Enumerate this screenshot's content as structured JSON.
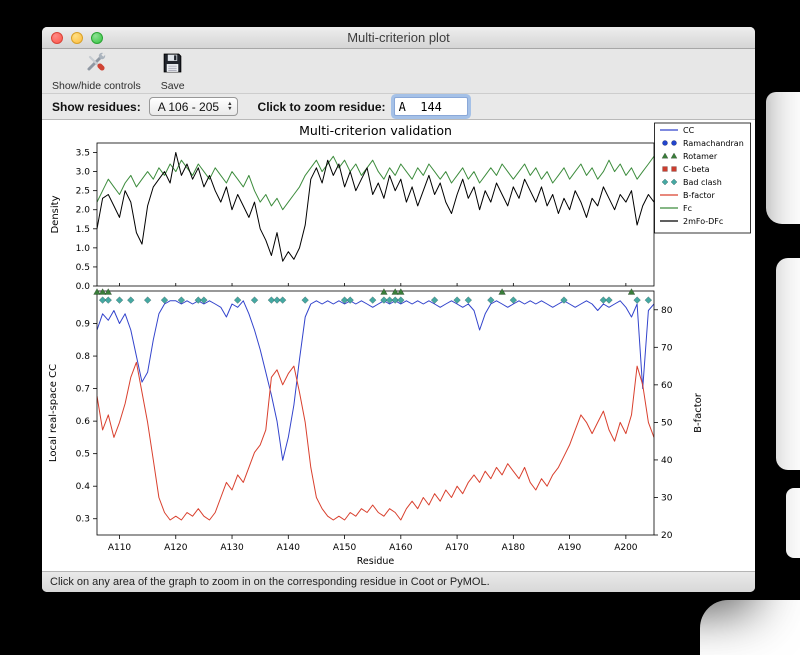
{
  "window": {
    "title": "Multi-criterion plot",
    "toolbar": {
      "show_hide_label": "Show/hide controls",
      "save_label": "Save"
    },
    "controls": {
      "show_residues_label": "Show residues:",
      "show_residues_value": "A 106 - 205",
      "zoom_residue_label": "Click to zoom residue:",
      "zoom_residue_value": "A  144"
    },
    "status_text": "Click on any area of the graph to zoom in on the corresponding residue in Coot or PyMOL."
  },
  "chart_data": {
    "type": "line",
    "title": "Multi-criterion validation",
    "xlabel": "Residue",
    "x_start": 106,
    "x_end": 205,
    "x_tick_values": [
      110,
      120,
      130,
      140,
      150,
      160,
      170,
      180,
      190,
      200
    ],
    "x_tick_labels": [
      "A110",
      "A120",
      "A130",
      "A140",
      "A150",
      "A160",
      "A170",
      "A180",
      "A190",
      "A200"
    ],
    "top_plot": {
      "ylabel": "Density",
      "ylim": [
        0.0,
        3.75
      ],
      "ytick_values": [
        0.0,
        0.5,
        1.0,
        1.5,
        2.0,
        2.5,
        3.0,
        3.5
      ],
      "ytick_labels": [
        "0.0",
        "0.5",
        "1.0",
        "1.5",
        "2.0",
        "2.5",
        "3.0",
        "3.5"
      ],
      "series": [
        {
          "name": "Fc",
          "color": "#3d8c3d",
          "values": [
            2.2,
            2.5,
            2.8,
            2.6,
            2.4,
            2.7,
            2.9,
            2.6,
            2.8,
            3.0,
            2.8,
            3.1,
            2.9,
            3.2,
            3.0,
            3.3,
            3.1,
            2.9,
            3.2,
            3.0,
            2.8,
            3.1,
            2.9,
            2.7,
            3.0,
            2.8,
            2.6,
            2.9,
            2.5,
            2.2,
            2.4,
            2.1,
            2.3,
            2.0,
            2.2,
            2.4,
            2.6,
            2.9,
            3.1,
            3.3,
            3.0,
            3.2,
            3.4,
            3.1,
            3.3,
            3.0,
            3.2,
            2.9,
            3.1,
            3.3,
            3.0,
            2.8,
            3.1,
            2.9,
            3.2,
            3.0,
            2.8,
            3.1,
            2.9,
            3.2,
            3.0,
            2.8,
            3.0,
            2.7,
            2.9,
            3.1,
            2.8,
            3.0,
            2.7,
            2.9,
            3.1,
            2.9,
            3.2,
            3.0,
            2.8,
            3.0,
            3.2,
            2.9,
            3.1,
            2.8,
            3.0,
            2.7,
            2.9,
            3.1,
            2.8,
            3.0,
            3.2,
            2.9,
            3.1,
            2.8,
            3.0,
            3.3,
            3.0,
            3.2,
            2.9,
            3.1,
            2.8,
            3.0,
            3.2,
            3.4
          ]
        },
        {
          "name": "2mFo-DFc",
          "color": "#000000",
          "values": [
            1.5,
            2.3,
            2.4,
            2.1,
            1.8,
            2.5,
            2.2,
            1.4,
            1.1,
            2.1,
            2.6,
            2.8,
            3.0,
            2.7,
            3.5,
            2.9,
            3.2,
            2.8,
            3.1,
            2.6,
            2.9,
            2.5,
            2.2,
            2.6,
            2.0,
            2.4,
            2.1,
            1.8,
            2.2,
            1.5,
            1.2,
            0.8,
            1.4,
            0.65,
            0.9,
            0.7,
            1.0,
            1.6,
            2.8,
            3.1,
            2.7,
            3.3,
            2.9,
            3.2,
            2.6,
            3.0,
            2.5,
            2.8,
            3.1,
            2.4,
            2.7,
            2.3,
            2.9,
            2.5,
            2.8,
            2.2,
            2.6,
            2.1,
            2.5,
            2.9,
            2.4,
            2.7,
            2.2,
            1.9,
            2.4,
            2.8,
            2.3,
            2.6,
            2.0,
            2.5,
            2.2,
            2.7,
            2.4,
            2.1,
            2.6,
            2.3,
            2.8,
            2.5,
            2.2,
            2.6,
            2.1,
            2.4,
            1.9,
            2.3,
            2.0,
            2.5,
            2.2,
            1.8,
            2.3,
            2.1,
            2.6,
            2.3,
            2.0,
            2.4,
            2.2,
            2.5,
            1.6,
            2.1,
            2.4,
            2.2
          ]
        }
      ]
    },
    "bottom_plot": {
      "left_ylabel": "Local real-space CC",
      "left_label_color": "#3344cc",
      "left_ylim": [
        0.25,
        1.0
      ],
      "left_ytick_values": [
        0.3,
        0.4,
        0.5,
        0.6,
        0.7,
        0.8,
        0.9
      ],
      "left_ytick_labels": [
        "0.3",
        "0.4",
        "0.5",
        "0.6",
        "0.7",
        "0.8",
        "0.9"
      ],
      "right_ylabel": "B-factor",
      "right_label_color": "#d9402e",
      "right_ylim": [
        20,
        85
      ],
      "right_ytick_values": [
        20,
        30,
        40,
        50,
        60,
        70,
        80
      ],
      "right_ytick_labels": [
        "20",
        "30",
        "40",
        "50",
        "60",
        "70",
        "80"
      ],
      "series": [
        {
          "name": "CC",
          "axis": "left",
          "color": "#3344cc",
          "values": [
            0.88,
            0.93,
            0.91,
            0.94,
            0.9,
            0.93,
            0.88,
            0.8,
            0.72,
            0.75,
            0.85,
            0.93,
            0.96,
            0.97,
            0.97,
            0.96,
            0.97,
            0.96,
            0.97,
            0.96,
            0.97,
            0.96,
            0.95,
            0.92,
            0.96,
            0.95,
            0.97,
            0.93,
            0.88,
            0.82,
            0.75,
            0.68,
            0.6,
            0.48,
            0.55,
            0.65,
            0.79,
            0.92,
            0.96,
            0.97,
            0.96,
            0.97,
            0.96,
            0.97,
            0.96,
            0.97,
            0.96,
            0.97,
            0.96,
            0.95,
            0.96,
            0.97,
            0.96,
            0.97,
            0.96,
            0.97,
            0.96,
            0.97,
            0.96,
            0.97,
            0.96,
            0.95,
            0.96,
            0.97,
            0.96,
            0.95,
            0.96,
            0.94,
            0.88,
            0.93,
            0.96,
            0.97,
            0.96,
            0.95,
            0.96,
            0.97,
            0.96,
            0.97,
            0.96,
            0.97,
            0.96,
            0.95,
            0.96,
            0.97,
            0.96,
            0.95,
            0.96,
            0.97,
            0.96,
            0.94,
            0.96,
            0.95,
            0.96,
            0.97,
            0.95,
            0.92,
            0.96,
            0.7,
            0.94,
            0.96
          ]
        },
        {
          "name": "B-factor",
          "axis": "right",
          "color": "#d9402e",
          "values": [
            57,
            48,
            52,
            46,
            50,
            55,
            62,
            66,
            58,
            50,
            40,
            30,
            26,
            24,
            25,
            24,
            26,
            25,
            27,
            25,
            24,
            26,
            30,
            34,
            32,
            36,
            34,
            38,
            42,
            44,
            48,
            62,
            64,
            60,
            63,
            65,
            58,
            50,
            38,
            30,
            27,
            25,
            24,
            25,
            24,
            26,
            25,
            27,
            26,
            28,
            26,
            25,
            27,
            26,
            24,
            27,
            29,
            27,
            30,
            28,
            31,
            29,
            32,
            30,
            33,
            31,
            34,
            36,
            34,
            37,
            35,
            38,
            36,
            39,
            37,
            35,
            38,
            34,
            32,
            35,
            33,
            36,
            38,
            41,
            44,
            48,
            52,
            50,
            47,
            50,
            53,
            48,
            45,
            50,
            47,
            52,
            65,
            60,
            50,
            46
          ]
        }
      ],
      "markers": [
        {
          "name": "Rotamer",
          "shape": "triangle",
          "color": "#3a7d3a",
          "y_value": 0.997,
          "residues": [
            106,
            107,
            108,
            157,
            159,
            160,
            178,
            201
          ]
        },
        {
          "name": "Bad clash",
          "shape": "diamond",
          "color": "#45a8a2",
          "y_value": 0.972,
          "residues": [
            107,
            108,
            110,
            112,
            115,
            118,
            121,
            124,
            125,
            131,
            134,
            137,
            138,
            139,
            143,
            150,
            151,
            155,
            157,
            158,
            159,
            160,
            166,
            170,
            172,
            176,
            180,
            189,
            196,
            197,
            202,
            204
          ]
        }
      ]
    },
    "legend": [
      {
        "label": "CC",
        "type": "line",
        "color": "#3344cc"
      },
      {
        "label": "Ramachandran",
        "type": "circle",
        "color": "#2244cc"
      },
      {
        "label": "Rotamer",
        "type": "triangle",
        "color": "#3a7d3a"
      },
      {
        "label": "C-beta",
        "type": "square",
        "color": "#cc3d2e"
      },
      {
        "label": "Bad clash",
        "type": "diamond",
        "color": "#45a8a2"
      },
      {
        "label": "B-factor",
        "type": "line",
        "color": "#d9402e"
      },
      {
        "label": "Fc",
        "type": "line",
        "color": "#3d8c3d"
      },
      {
        "label": "2mFo-DFc",
        "type": "line",
        "color": "#000000"
      }
    ]
  }
}
